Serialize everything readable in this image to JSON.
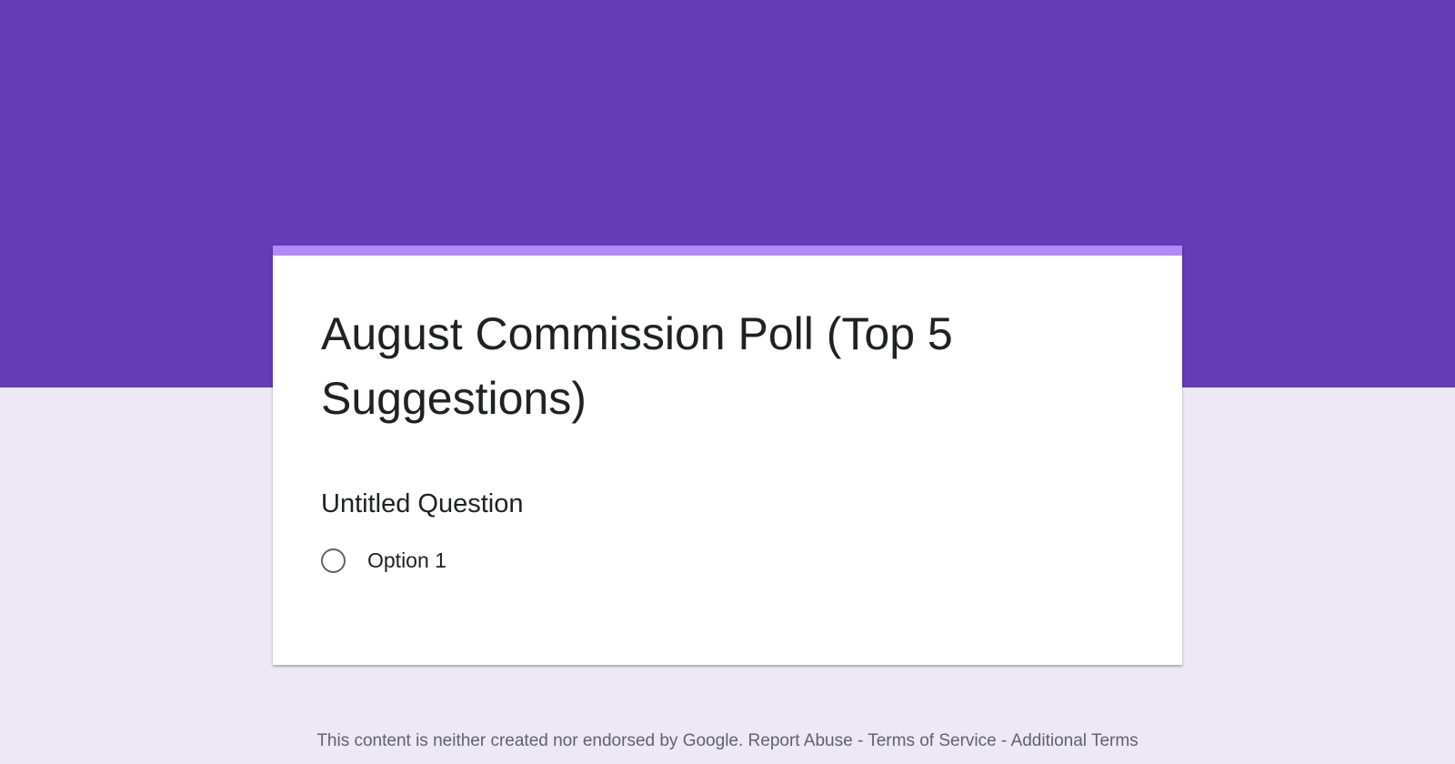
{
  "form": {
    "title": "August Commission Poll (Top 5 Suggestions)",
    "question": "Untitled Question",
    "options": [
      {
        "label": "Option 1",
        "selected": false
      }
    ]
  },
  "footer": {
    "disclaimer": "This content is neither created nor endorsed by Google.",
    "report_abuse": "Report Abuse",
    "sep": " - ",
    "terms_of_service": "Terms of Service",
    "additional_terms": "Additional Terms"
  },
  "colors": {
    "header": "#673ab7",
    "accent": "#b388ff",
    "background": "#ede7f6"
  }
}
